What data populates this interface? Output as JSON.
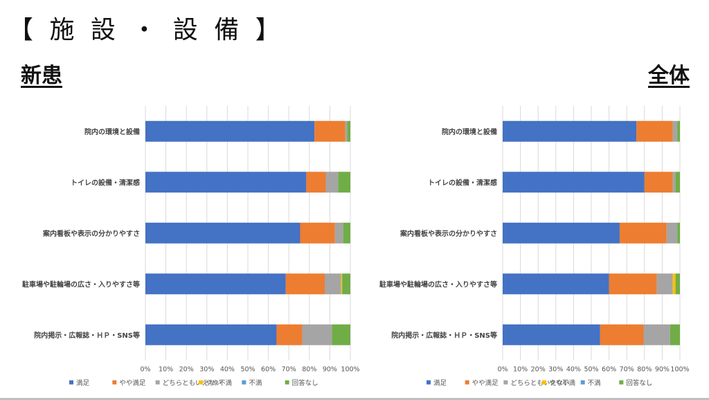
{
  "page": {
    "title": "【 施 設 ・ 設 備 】",
    "left_label": "新患",
    "right_label": "全体"
  },
  "chart_data": [
    {
      "type": "bar",
      "orientation": "horizontal",
      "stacked": "percent",
      "section": "新患",
      "categories": [
        "院内の環境と設備",
        "トイレの設備・清潔感",
        "案内看板や表示の分かりやすさ",
        "駐車場や駐輪場の広さ・入りやすさ等",
        "院内掲示・広報誌・ＨＰ・SNS等"
      ],
      "series": [
        {
          "name": "満足",
          "color": "#4472C4",
          "values": [
            82.5,
            78.5,
            75.5,
            68.5,
            64
          ]
        },
        {
          "name": "やや満足",
          "color": "#ED7D31",
          "values": [
            15,
            9.5,
            17,
            19,
            12.5
          ]
        },
        {
          "name": "どちらともいえない",
          "color": "#A5A5A5",
          "values": [
            1,
            6,
            4,
            8,
            14.5
          ]
        },
        {
          "name": "やや不満",
          "color": "#FFC000",
          "values": [
            0,
            0,
            0,
            0.5,
            0
          ]
        },
        {
          "name": "不満",
          "color": "#5B9BD5",
          "values": [
            0,
            0,
            0,
            0,
            0
          ]
        },
        {
          "name": "回答なし",
          "color": "#70AD47",
          "values": [
            1.5,
            6,
            3.5,
            4,
            9
          ]
        }
      ],
      "x_ticks": [
        "0%",
        "10%",
        "20%",
        "30%",
        "40%",
        "50%",
        "60%",
        "70%",
        "80%",
        "90%",
        "100%"
      ],
      "xlim": [
        0,
        100
      ],
      "grid": true,
      "legend_position": "bottom"
    },
    {
      "type": "bar",
      "orientation": "horizontal",
      "stacked": "percent",
      "section": "全体",
      "categories": [
        "院内の環境と設備",
        "トイレの設備・清潔感",
        "案内看板や表示の分かりやすさ",
        "駐車場や駐輪場の広さ・入りやすさ等",
        "院内掲示・広報誌・ＨＰ・SNS等"
      ],
      "series": [
        {
          "name": "満足",
          "color": "#4472C4",
          "values": [
            75.5,
            80,
            66,
            60,
            55
          ]
        },
        {
          "name": "やや満足",
          "color": "#ED7D31",
          "values": [
            20.5,
            16,
            26.5,
            27,
            24.5
          ]
        },
        {
          "name": "どちらともいえない",
          "color": "#A5A5A5",
          "values": [
            2.5,
            1.5,
            6,
            9,
            15
          ]
        },
        {
          "name": "やや不満",
          "color": "#FFC000",
          "values": [
            0,
            0,
            0,
            1.5,
            0
          ]
        },
        {
          "name": "不満",
          "color": "#5B9BD5",
          "values": [
            0,
            0,
            0,
            0,
            0
          ]
        },
        {
          "name": "回答なし",
          "color": "#70AD47",
          "values": [
            1.5,
            2.5,
            1.5,
            2.5,
            5.5
          ]
        }
      ],
      "x_ticks": [
        "0%",
        "10%",
        "20%",
        "30%",
        "40%",
        "50%",
        "60%",
        "70%",
        "80%",
        "90%",
        "100%"
      ],
      "xlim": [
        0,
        100
      ],
      "grid": true,
      "legend_position": "bottom"
    }
  ]
}
